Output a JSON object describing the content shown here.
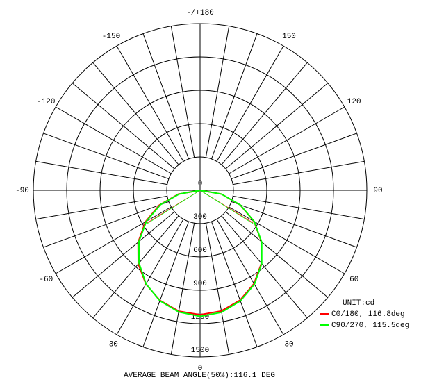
{
  "chart_data": {
    "type": "polar",
    "title": "AVERAGE BEAM ANGLE(50%):116.1 DEG",
    "unit_label": "UNIT:cd",
    "rlim": [
      0,
      1500
    ],
    "rticks": [
      0,
      300,
      600,
      900,
      1200,
      1500
    ],
    "angle_ticks": [
      {
        "value": 180,
        "label": "-/+180"
      },
      150,
      120,
      90,
      60,
      30,
      0,
      -30,
      -60,
      -90,
      -120,
      -150
    ],
    "x": [
      -90,
      -80,
      -70,
      -60,
      -50,
      -40,
      -30,
      -20,
      -10,
      0,
      10,
      20,
      30,
      40,
      50,
      60,
      70,
      80,
      90
    ],
    "series": [
      {
        "name": "C0/180, 116.8deg",
        "color": "#ff0000",
        "beam_angle": 116.8,
        "values": [
          0,
          200,
          390,
          568,
          728,
          865,
          975,
          1055,
          1105,
          1120,
          1103,
          1052,
          970,
          858,
          720,
          560,
          383,
          195,
          0
        ]
      },
      {
        "name": "C90/270, 115.5deg",
        "color": "#00ff00",
        "beam_angle": 115.5,
        "values": [
          0,
          190,
          380,
          558,
          718,
          855,
          972,
          1058,
          1112,
          1135,
          1115,
          1060,
          977,
          862,
          724,
          563,
          385,
          195,
          0
        ]
      }
    ]
  }
}
